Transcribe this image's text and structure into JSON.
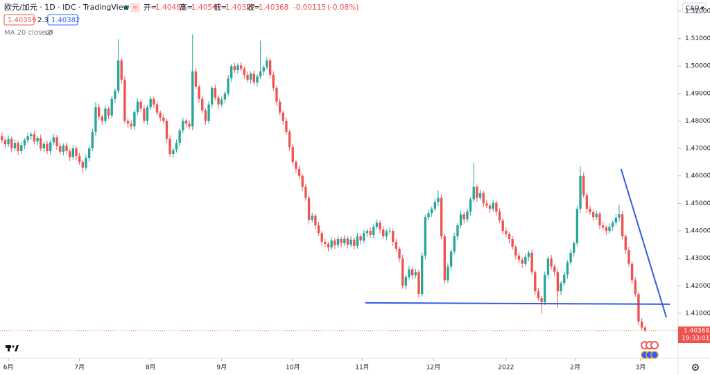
{
  "chart_data": {
    "type": "candlestick",
    "title": "欧元/加元 · 1D · IDC · TradingView",
    "open_label": "开=",
    "high_label": "高=",
    "low_label": "低=",
    "close_label": "收=",
    "change": "-0.00115",
    "change_pct": "(-0.08%)",
    "bid": "1.40359",
    "spread": "2.3",
    "ask": "1.40382",
    "indicator": "MA 20 close 0",
    "currency": "CAD",
    "countdown": "19:33:01",
    "up_color": "#26a69a",
    "down_color": "#ef5350",
    "xlim": [
      -0.6,
      208.6
    ],
    "xticks": [
      {
        "value": 2,
        "label": "6月"
      },
      {
        "value": 24,
        "label": "7月"
      },
      {
        "value": 46,
        "label": "8月"
      },
      {
        "value": 68,
        "label": "9月"
      },
      {
        "value": 90,
        "label": "10月"
      },
      {
        "value": 111.5,
        "label": "11月"
      },
      {
        "value": 133.5,
        "label": "12月"
      },
      {
        "value": 156,
        "label": "2022"
      },
      {
        "value": 177.4,
        "label": "2月"
      },
      {
        "value": 197.6,
        "label": "3月"
      }
    ],
    "ylim": [
      1.3936,
      1.524
    ],
    "yticks": [
      {
        "value": 1.4,
        "label": "1.40000"
      },
      {
        "value": 1.41,
        "label": "1.41000"
      },
      {
        "value": 1.42,
        "label": "1.42000"
      },
      {
        "value": 1.43,
        "label": "1.43000"
      },
      {
        "value": 1.44,
        "label": "1.44000"
      },
      {
        "value": 1.45,
        "label": "1.45000"
      },
      {
        "value": 1.46,
        "label": "1.46000"
      },
      {
        "value": 1.47,
        "label": "1.47000"
      },
      {
        "value": 1.48,
        "label": "1.48000"
      },
      {
        "value": 1.49,
        "label": "1.49000"
      },
      {
        "value": 1.5,
        "label": "1.50000"
      },
      {
        "value": 1.51,
        "label": "1.51000"
      },
      {
        "value": 1.52,
        "label": "1.52000"
      }
    ],
    "grid": false,
    "drawings": [
      {
        "color": "#2f5ae6",
        "x": [
          112.4,
          206.7
        ],
        "y": [
          1.4138,
          1.4133
        ]
      },
      {
        "color": "#2f5ae6",
        "x": [
          191.6,
          205.6
        ],
        "y": [
          1.4625,
          1.4085
        ]
      }
    ],
    "ohlc": [
      [
        1.4745,
        1.4757,
        1.472,
        1.473
      ],
      [
        1.473,
        1.4738,
        1.4701,
        1.4715
      ],
      [
        1.4715,
        1.4747,
        1.4705,
        1.4735
      ],
      [
        1.4735,
        1.4743,
        1.4686,
        1.47
      ],
      [
        1.47,
        1.4732,
        1.469,
        1.472
      ],
      [
        1.472,
        1.4728,
        1.4676,
        1.469
      ],
      [
        1.469,
        1.4724,
        1.468,
        1.4712
      ],
      [
        1.4712,
        1.4738,
        1.4698,
        1.473
      ],
      [
        1.473,
        1.4757,
        1.472,
        1.4745
      ],
      [
        1.4745,
        1.476,
        1.4731,
        1.4752
      ],
      [
        1.4752,
        1.4764,
        1.4715,
        1.4725
      ],
      [
        1.4725,
        1.4746,
        1.4711,
        1.4738
      ],
      [
        1.4738,
        1.475,
        1.469,
        1.47
      ],
      [
        1.47,
        1.4724,
        1.4686,
        1.4716
      ],
      [
        1.4716,
        1.4728,
        1.468,
        1.469
      ],
      [
        1.469,
        1.473,
        1.4676,
        1.4722
      ],
      [
        1.4722,
        1.4752,
        1.4712,
        1.474
      ],
      [
        1.474,
        1.4748,
        1.4694,
        1.4708
      ],
      [
        1.4708,
        1.472,
        1.4678,
        1.4688
      ],
      [
        1.4688,
        1.4718,
        1.4674,
        1.471
      ],
      [
        1.471,
        1.4722,
        1.468,
        1.469
      ],
      [
        1.469,
        1.4698,
        1.4654,
        1.4668
      ],
      [
        1.4668,
        1.4712,
        1.4658,
        1.47
      ],
      [
        1.47,
        1.4708,
        1.4658,
        1.4672
      ],
      [
        1.4672,
        1.4684,
        1.464,
        1.465
      ],
      [
        1.465,
        1.4658,
        1.4612,
        1.463
      ],
      [
        1.463,
        1.4677,
        1.462,
        1.4665
      ],
      [
        1.4665,
        1.4708,
        1.4651,
        1.47
      ],
      [
        1.47,
        1.4772,
        1.469,
        1.476
      ],
      [
        1.476,
        1.4868,
        1.4746,
        1.485
      ],
      [
        1.485,
        1.4862,
        1.4805,
        1.4815
      ],
      [
        1.4815,
        1.4823,
        1.4786,
        1.48
      ],
      [
        1.48,
        1.4857,
        1.479,
        1.4845
      ],
      [
        1.4845,
        1.4853,
        1.4806,
        1.482
      ],
      [
        1.482,
        1.4892,
        1.481,
        1.488
      ],
      [
        1.488,
        1.4918,
        1.4866,
        1.491
      ],
      [
        1.491,
        1.5098,
        1.49,
        1.502
      ],
      [
        1.502,
        1.5028,
        1.4936,
        1.495
      ],
      [
        1.495,
        1.4962,
        1.479,
        1.48
      ],
      [
        1.48,
        1.4808,
        1.4776,
        1.479
      ],
      [
        1.479,
        1.4802,
        1.477,
        1.478
      ],
      [
        1.478,
        1.484,
        1.4766,
        1.4832
      ],
      [
        1.4832,
        1.4882,
        1.4822,
        1.487
      ],
      [
        1.487,
        1.4878,
        1.4831,
        1.4845
      ],
      [
        1.4845,
        1.4857,
        1.479,
        1.48
      ],
      [
        1.48,
        1.4858,
        1.4786,
        1.485
      ],
      [
        1.485,
        1.4892,
        1.484,
        1.488
      ],
      [
        1.488,
        1.4888,
        1.4846,
        1.486
      ],
      [
        1.486,
        1.4872,
        1.482,
        1.483
      ],
      [
        1.483,
        1.4838,
        1.4798,
        1.4812
      ],
      [
        1.4812,
        1.4824,
        1.479,
        1.48
      ],
      [
        1.48,
        1.4808,
        1.4721,
        1.4735
      ],
      [
        1.4735,
        1.4747,
        1.467,
        1.468
      ],
      [
        1.468,
        1.4703,
        1.4666,
        1.4695
      ],
      [
        1.4695,
        1.4732,
        1.4685,
        1.472
      ],
      [
        1.472,
        1.4773,
        1.4706,
        1.4765
      ],
      [
        1.4765,
        1.4812,
        1.4755,
        1.48
      ],
      [
        1.48,
        1.4808,
        1.4776,
        1.479
      ],
      [
        1.479,
        1.4802,
        1.477,
        1.478
      ],
      [
        1.478,
        1.5115,
        1.4766,
        1.498
      ],
      [
        1.498,
        1.4992,
        1.4915,
        1.4925
      ],
      [
        1.4925,
        1.4933,
        1.4866,
        1.488
      ],
      [
        1.488,
        1.4892,
        1.4828,
        1.4838
      ],
      [
        1.4838,
        1.4846,
        1.4786,
        1.48
      ],
      [
        1.48,
        1.4872,
        1.479,
        1.486
      ],
      [
        1.486,
        1.4928,
        1.4846,
        1.492
      ],
      [
        1.492,
        1.4932,
        1.4875,
        1.4885
      ],
      [
        1.4885,
        1.4893,
        1.4846,
        1.486
      ],
      [
        1.486,
        1.489,
        1.485,
        1.4878
      ],
      [
        1.4878,
        1.4908,
        1.4864,
        1.49
      ],
      [
        1.49,
        1.4967,
        1.489,
        1.4955
      ],
      [
        1.4955,
        1.5008,
        1.4941,
        1.5
      ],
      [
        1.5,
        1.5012,
        1.4975,
        1.4985
      ],
      [
        1.4985,
        1.501,
        1.4971,
        1.5002
      ],
      [
        1.5002,
        1.5014,
        1.498,
        1.499
      ],
      [
        1.499,
        1.4998,
        1.4954,
        1.4968
      ],
      [
        1.4968,
        1.498,
        1.494,
        1.495
      ],
      [
        1.495,
        1.498,
        1.4936,
        1.4972
      ],
      [
        1.4972,
        1.4984,
        1.493,
        1.494
      ],
      [
        1.494,
        1.497,
        1.4926,
        1.4962
      ],
      [
        1.4962,
        1.5092,
        1.4952,
        1.498
      ],
      [
        1.498,
        1.5003,
        1.4966,
        1.4995
      ],
      [
        1.4995,
        1.5032,
        1.4985,
        1.502
      ],
      [
        1.502,
        1.5028,
        1.4954,
        1.4968
      ],
      [
        1.4968,
        1.498,
        1.491,
        1.492
      ],
      [
        1.492,
        1.4928,
        1.4856,
        1.487
      ],
      [
        1.487,
        1.4882,
        1.482,
        1.483
      ],
      [
        1.483,
        1.4838,
        1.4786,
        1.48
      ],
      [
        1.48,
        1.4812,
        1.475,
        1.476
      ],
      [
        1.476,
        1.4768,
        1.4691,
        1.4705
      ],
      [
        1.4705,
        1.4717,
        1.464,
        1.465
      ],
      [
        1.465,
        1.4658,
        1.4611,
        1.4625
      ],
      [
        1.4625,
        1.4637,
        1.459,
        1.46
      ],
      [
        1.46,
        1.4608,
        1.4546,
        1.456
      ],
      [
        1.456,
        1.4572,
        1.451,
        1.452
      ],
      [
        1.452,
        1.4528,
        1.4426,
        1.444
      ],
      [
        1.444,
        1.4467,
        1.443,
        1.4455
      ],
      [
        1.4455,
        1.4463,
        1.4406,
        1.442
      ],
      [
        1.442,
        1.4432,
        1.4382,
        1.4392
      ],
      [
        1.4392,
        1.44,
        1.4346,
        1.436
      ],
      [
        1.436,
        1.4372,
        1.4342,
        1.4352
      ],
      [
        1.4352,
        1.436,
        1.4326,
        1.434
      ],
      [
        1.434,
        1.4377,
        1.433,
        1.4365
      ],
      [
        1.4365,
        1.4373,
        1.4334,
        1.4348
      ],
      [
        1.4348,
        1.4382,
        1.4338,
        1.437
      ],
      [
        1.437,
        1.4378,
        1.4341,
        1.4355
      ],
      [
        1.4355,
        1.4384,
        1.4345,
        1.4372
      ],
      [
        1.4372,
        1.438,
        1.4336,
        1.435
      ],
      [
        1.435,
        1.438,
        1.434,
        1.4368
      ],
      [
        1.4368,
        1.4376,
        1.4331,
        1.4345
      ],
      [
        1.4345,
        1.4392,
        1.4335,
        1.438
      ],
      [
        1.438,
        1.4388,
        1.4351,
        1.4365
      ],
      [
        1.4365,
        1.4404,
        1.4355,
        1.4392
      ],
      [
        1.4392,
        1.4408,
        1.4378,
        1.44
      ],
      [
        1.44,
        1.4412,
        1.4375,
        1.4385
      ],
      [
        1.4385,
        1.4423,
        1.4371,
        1.4415
      ],
      [
        1.4415,
        1.4442,
        1.4405,
        1.443
      ],
      [
        1.443,
        1.4438,
        1.4391,
        1.4405
      ],
      [
        1.4405,
        1.4417,
        1.437,
        1.438
      ],
      [
        1.438,
        1.4406,
        1.4366,
        1.4398
      ],
      [
        1.4398,
        1.4412,
        1.4388,
        1.44
      ],
      [
        1.44,
        1.4408,
        1.4346,
        1.436
      ],
      [
        1.436,
        1.4372,
        1.4325,
        1.4335
      ],
      [
        1.4335,
        1.4343,
        1.4286,
        1.43
      ],
      [
        1.43,
        1.4312,
        1.419,
        1.42
      ],
      [
        1.42,
        1.424,
        1.4186,
        1.4232
      ],
      [
        1.4232,
        1.4272,
        1.4222,
        1.426
      ],
      [
        1.426,
        1.4268,
        1.4224,
        1.4238
      ],
      [
        1.4238,
        1.4262,
        1.4228,
        1.425
      ],
      [
        1.425,
        1.4258,
        1.4156,
        1.417
      ],
      [
        1.417,
        1.4322,
        1.416,
        1.431
      ],
      [
        1.431,
        1.4458,
        1.4296,
        1.445
      ],
      [
        1.445,
        1.4477,
        1.444,
        1.4465
      ],
      [
        1.4465,
        1.4488,
        1.4451,
        1.448
      ],
      [
        1.448,
        1.4517,
        1.447,
        1.4505
      ],
      [
        1.4505,
        1.4548,
        1.4491,
        1.452
      ],
      [
        1.452,
        1.4532,
        1.437,
        1.438
      ],
      [
        1.438,
        1.4388,
        1.4206,
        1.422
      ],
      [
        1.422,
        1.4282,
        1.421,
        1.427
      ],
      [
        1.427,
        1.4333,
        1.4256,
        1.4325
      ],
      [
        1.4325,
        1.4392,
        1.4315,
        1.438
      ],
      [
        1.438,
        1.4428,
        1.4366,
        1.442
      ],
      [
        1.442,
        1.4472,
        1.441,
        1.446
      ],
      [
        1.446,
        1.4468,
        1.4428,
        1.4442
      ],
      [
        1.4442,
        1.4482,
        1.4432,
        1.447
      ],
      [
        1.447,
        1.4523,
        1.4456,
        1.4515
      ],
      [
        1.4515,
        1.4648,
        1.4505,
        1.456
      ],
      [
        1.456,
        1.4568,
        1.4506,
        1.452
      ],
      [
        1.452,
        1.455,
        1.451,
        1.4538
      ],
      [
        1.4538,
        1.4546,
        1.4486,
        1.45
      ],
      [
        1.45,
        1.4512,
        1.4482,
        1.4492
      ],
      [
        1.4492,
        1.45,
        1.4466,
        1.448
      ],
      [
        1.448,
        1.4514,
        1.447,
        1.4502
      ],
      [
        1.4502,
        1.451,
        1.4456,
        1.447
      ],
      [
        1.447,
        1.4482,
        1.4428,
        1.4438
      ],
      [
        1.4438,
        1.4446,
        1.4386,
        1.44
      ],
      [
        1.44,
        1.4412,
        1.4378,
        1.4388
      ],
      [
        1.4388,
        1.4396,
        1.4356,
        1.437
      ],
      [
        1.437,
        1.4382,
        1.4332,
        1.4342
      ],
      [
        1.4342,
        1.435,
        1.4296,
        1.431
      ],
      [
        1.431,
        1.4322,
        1.4285,
        1.4295
      ],
      [
        1.4295,
        1.4303,
        1.4266,
        1.428
      ],
      [
        1.428,
        1.4317,
        1.427,
        1.4305
      ],
      [
        1.4305,
        1.4328,
        1.4291,
        1.432
      ],
      [
        1.432,
        1.4332,
        1.424,
        1.425
      ],
      [
        1.425,
        1.4258,
        1.4166,
        1.418
      ],
      [
        1.418,
        1.4192,
        1.4145,
        1.4155
      ],
      [
        1.4155,
        1.4163,
        1.4098,
        1.414
      ],
      [
        1.414,
        1.4252,
        1.413,
        1.424
      ],
      [
        1.424,
        1.4308,
        1.4226,
        1.43
      ],
      [
        1.43,
        1.4312,
        1.426,
        1.427
      ],
      [
        1.427,
        1.4278,
        1.4236,
        1.425
      ],
      [
        1.425,
        1.4262,
        1.412,
        1.418
      ],
      [
        1.418,
        1.4218,
        1.4166,
        1.421
      ],
      [
        1.421,
        1.4252,
        1.42,
        1.424
      ],
      [
        1.424,
        1.4293,
        1.4226,
        1.4285
      ],
      [
        1.4285,
        1.4332,
        1.4275,
        1.432
      ],
      [
        1.432,
        1.4363,
        1.4306,
        1.4355
      ],
      [
        1.4355,
        1.4492,
        1.4345,
        1.448
      ],
      [
        1.448,
        1.4635,
        1.4466,
        1.46
      ],
      [
        1.46,
        1.4612,
        1.452,
        1.453
      ],
      [
        1.453,
        1.4538,
        1.4466,
        1.448
      ],
      [
        1.448,
        1.4492,
        1.4458,
        1.4468
      ],
      [
        1.4468,
        1.4476,
        1.4436,
        1.445
      ],
      [
        1.445,
        1.4474,
        1.444,
        1.4462
      ],
      [
        1.4462,
        1.447,
        1.4406,
        1.442
      ],
      [
        1.442,
        1.4432,
        1.4402,
        1.4412
      ],
      [
        1.4412,
        1.442,
        1.4386,
        1.44
      ],
      [
        1.44,
        1.4427,
        1.439,
        1.4415
      ],
      [
        1.4415,
        1.4438,
        1.4401,
        1.443
      ],
      [
        1.443,
        1.446,
        1.442,
        1.4448
      ],
      [
        1.4448,
        1.4495,
        1.4434,
        1.446
      ],
      [
        1.446,
        1.4472,
        1.437,
        1.438
      ],
      [
        1.438,
        1.4388,
        1.4316,
        1.433
      ],
      [
        1.433,
        1.4342,
        1.427,
        1.428
      ],
      [
        1.428,
        1.4288,
        1.4206,
        1.422
      ],
      [
        1.422,
        1.4232,
        1.416,
        1.417
      ],
      [
        1.417,
        1.4178,
        1.4056,
        1.407
      ],
      [
        1.407,
        1.4082,
        1.4038,
        1.4048
      ],
      [
        1.40483,
        1.40547,
        1.40327,
        1.40368
      ]
    ]
  }
}
